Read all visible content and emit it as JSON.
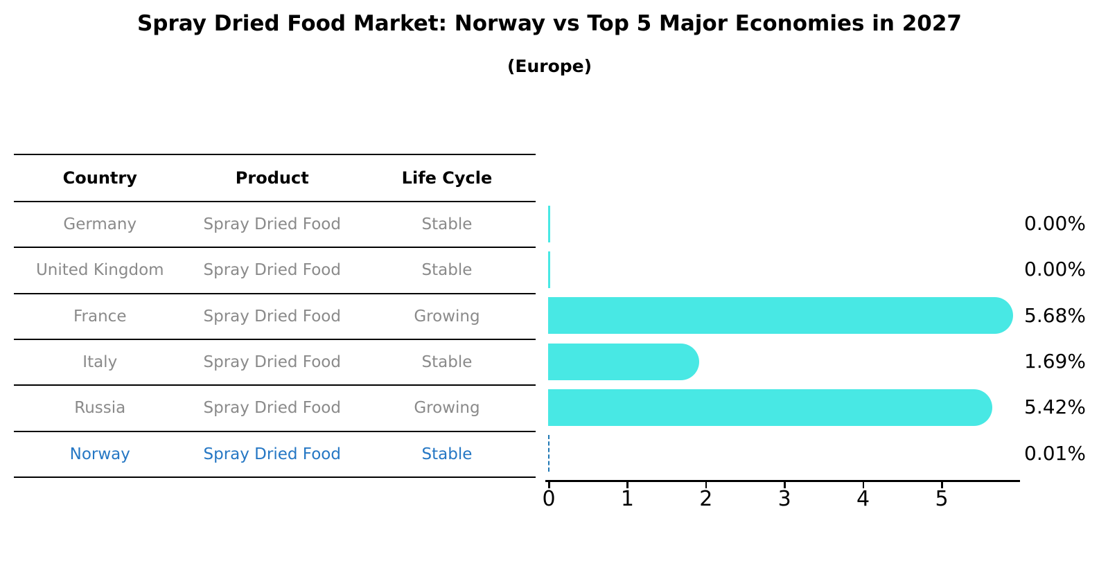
{
  "title": "Spray Dried Food Market: Norway vs Top 5 Major Economies in 2027",
  "subtitle": "(Europe)",
  "table": {
    "headers": [
      "Country",
      "Product",
      "Life Cycle"
    ],
    "rows": [
      {
        "country": "Germany",
        "product": "Spray Dried Food",
        "life_cycle": "Stable",
        "highlight": false
      },
      {
        "country": "United Kingdom",
        "product": "Spray Dried Food",
        "life_cycle": "Stable",
        "highlight": false
      },
      {
        "country": "France",
        "product": "Spray Dried Food",
        "life_cycle": "Growing",
        "highlight": false
      },
      {
        "country": "Italy",
        "product": "Spray Dried Food",
        "life_cycle": "Stable",
        "highlight": false
      },
      {
        "country": "Russia",
        "product": "Spray Dried Food",
        "life_cycle": "Growing",
        "highlight": false
      },
      {
        "country": "Norway",
        "product": "Spray Dried Food",
        "life_cycle": "Stable",
        "highlight": true
      }
    ]
  },
  "chart_data": {
    "type": "bar",
    "orientation": "horizontal",
    "title": "Spray Dried Food Market: Norway vs Top 5 Major Economies in 2027",
    "subtitle": "(Europe)",
    "categories": [
      "Germany",
      "United Kingdom",
      "France",
      "Italy",
      "Russia",
      "Norway"
    ],
    "values": [
      0.0,
      0.0,
      5.68,
      1.69,
      5.42,
      0.01
    ],
    "value_labels": [
      "0.00%",
      "0.00%",
      "5.68%",
      "1.69%",
      "5.42%",
      "0.01%"
    ],
    "highlight_category": "Norway",
    "x_ticks": [
      0,
      1,
      2,
      3,
      4,
      5
    ],
    "x_tick_labels": [
      "0",
      "1",
      "2",
      "3",
      "4",
      "5"
    ],
    "xlim": [
      0,
      6.0
    ],
    "grid": false,
    "legend": false,
    "xlabel": "",
    "ylabel": ""
  },
  "colors": {
    "bar": "#48E8E4",
    "highlight_blue": "#2577c4",
    "dashed_marker": "#1f77b4",
    "table_text_gray": "#8a8a8a",
    "axis_black": "#000000"
  }
}
